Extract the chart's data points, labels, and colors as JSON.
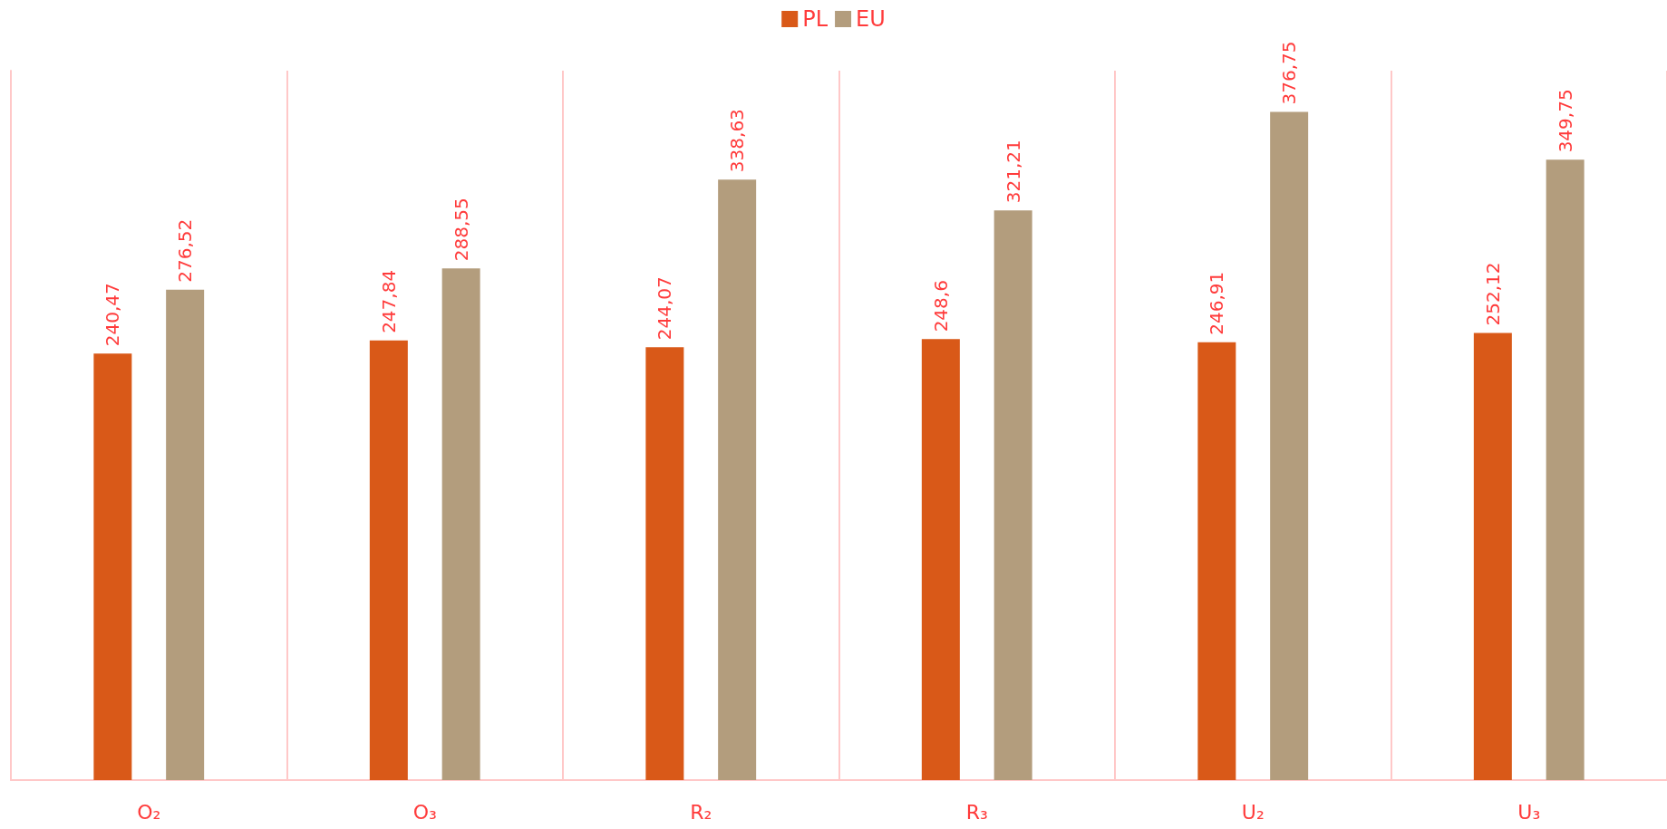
{
  "chart_data": {
    "type": "bar",
    "categories": [
      "O₂",
      "O₃",
      "R₂",
      "R₃",
      "U₂",
      "U₃"
    ],
    "series": [
      {
        "name": "PL",
        "color": "#d95918",
        "values": [
          240.47,
          247.84,
          244.07,
          248.6,
          246.91,
          252.12
        ],
        "value_labels": [
          "240,47",
          "247,84",
          "244,07",
          "248,6",
          "246,91",
          "252,12"
        ]
      },
      {
        "name": "EU",
        "color": "#b39d7d",
        "values": [
          276.52,
          288.55,
          338.63,
          321.21,
          376.75,
          349.75
        ],
        "value_labels": [
          "276,52",
          "288,55",
          "338,63",
          "321,21",
          "376,75",
          "349,75"
        ]
      }
    ],
    "relative": false,
    "grid": "x",
    "legend": "top"
  }
}
